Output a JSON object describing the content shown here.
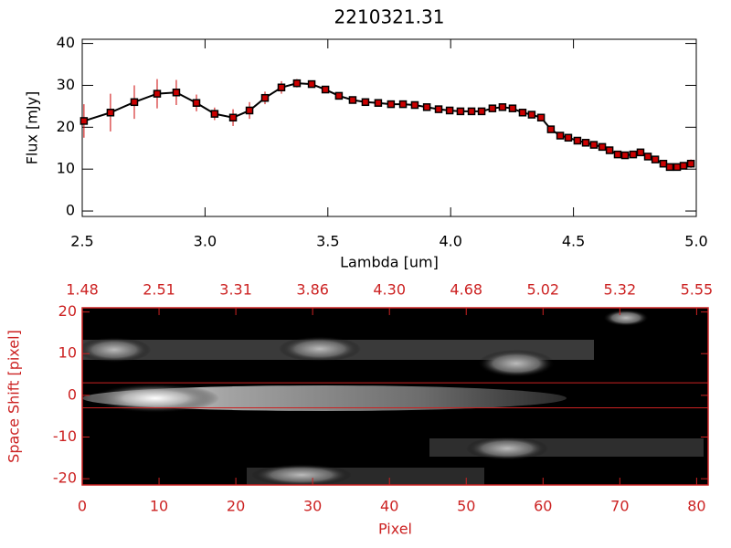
{
  "chart_data": [
    {
      "type": "line",
      "title": "2210321.31",
      "xlabel": "Lambda [um]",
      "ylabel": "Flux [mJy]",
      "xlim": [
        2.5,
        5.0
      ],
      "ylim": [
        -1.3,
        41
      ],
      "xticks": [
        2.5,
        {
          "value": 3,
          "label": "3.0"
        },
        3.5,
        {
          "value": 4,
          "label": "4.0"
        },
        4.5,
        {
          "value": 5,
          "label": "5.0"
        }
      ],
      "yticks": [
        0,
        10,
        20,
        30,
        40
      ],
      "color": "#000000",
      "marker_color": "#cc0000",
      "error_color": "#cc0000",
      "x": [
        2.507,
        2.615,
        2.712,
        2.805,
        2.883,
        2.965,
        3.039,
        3.114,
        3.181,
        3.244,
        3.311,
        3.374,
        3.434,
        3.49,
        3.545,
        3.601,
        3.653,
        3.705,
        3.757,
        3.806,
        3.854,
        3.903,
        3.951,
        3.996,
        4.04,
        4.085,
        4.126,
        4.17,
        4.211,
        4.252,
        4.293,
        4.33,
        4.368,
        4.408,
        4.446,
        4.479,
        4.516,
        4.55,
        4.583,
        4.617,
        4.647,
        4.68,
        4.71,
        4.743,
        4.773,
        4.803,
        4.833,
        4.866,
        4.892,
        4.922,
        4.948,
        4.978
      ],
      "values": [
        21.5,
        23.5,
        26,
        28,
        28.3,
        25.8,
        23.2,
        22.3,
        24,
        27,
        29.5,
        30.5,
        30.3,
        29,
        27.5,
        26.5,
        26,
        25.8,
        25.5,
        25.5,
        25.3,
        24.8,
        24.3,
        24,
        23.8,
        23.8,
        23.8,
        24.5,
        24.8,
        24.5,
        23.5,
        23,
        22.3,
        19.5,
        18,
        17.5,
        16.8,
        16.3,
        15.8,
        15.3,
        14.5,
        13.5,
        13.3,
        13.5,
        14,
        13,
        12.3,
        11.3,
        10.5,
        10.5,
        10.8,
        11.3
      ],
      "errors": [
        4,
        4.5,
        4,
        3.5,
        3,
        2,
        1.5,
        2,
        2,
        1.5,
        1.5,
        1,
        0.8,
        0.7,
        0.7,
        0.6,
        0.6,
        0.6,
        0.6,
        0.6,
        0.6,
        0.6,
        0.6,
        0.6,
        0.6,
        0.6,
        0.6,
        0.6,
        0.6,
        0.6,
        0.6,
        0.6,
        0.6,
        0.6,
        0.6,
        0.6,
        0.6,
        0.6,
        0.6,
        0.6,
        0.6,
        0.6,
        0.6,
        0.6,
        0.6,
        0.6,
        0.6,
        0.6,
        0.8,
        0.8,
        0.8,
        1
      ]
    },
    {
      "type": "image",
      "xlabel": "Pixel",
      "ylabel": "Space Shift [pixel]",
      "xlim": [
        0,
        81.5
      ],
      "ylim": [
        -21.5,
        21
      ],
      "xticks": [
        0,
        10,
        20,
        30,
        40,
        50,
        60,
        70,
        80
      ],
      "x2ticks": [
        {
          "value": 0,
          "label": "1.48"
        },
        {
          "value": 10,
          "label": "2.51"
        },
        {
          "value": 20,
          "label": "3.31"
        },
        {
          "value": 30,
          "label": "3.86"
        },
        {
          "value": 40,
          "label": "4.30"
        },
        {
          "value": 50,
          "label": "4.68"
        },
        {
          "value": 60,
          "label": "5.02"
        },
        {
          "value": 70,
          "label": "5.32"
        },
        {
          "value": 80,
          "label": "5.55"
        }
      ],
      "yticks": [
        -20,
        -10,
        0,
        10,
        20
      ],
      "hlines": [
        3,
        -3
      ],
      "color": "#cc2222"
    }
  ]
}
